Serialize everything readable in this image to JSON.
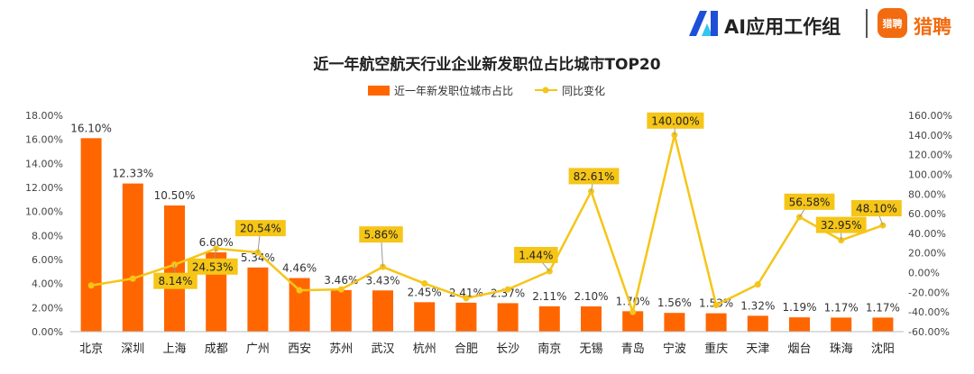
{
  "brand": {
    "ai_text": "AI应用工作组",
    "lp_icon_text": "猎聘",
    "lp_text": "猎聘",
    "accent": "#f26b10",
    "ai_logo_colors": [
      "#1e4fd8",
      "#33c6f0"
    ]
  },
  "chart_data": {
    "type": "bar",
    "title": "近一年航空航天行业企业新发职位占比城市TOP20",
    "categories": [
      "北京",
      "深圳",
      "上海",
      "成都",
      "广州",
      "西安",
      "苏州",
      "武汉",
      "杭州",
      "合肥",
      "长沙",
      "南京",
      "无锡",
      "青岛",
      "宁波",
      "重庆",
      "天津",
      "烟台",
      "珠海",
      "沈阳"
    ],
    "series": [
      {
        "name": "近一年新发职位城市占比",
        "kind": "bar",
        "axis": "left",
        "color": "#ff6600",
        "values": [
          16.1,
          12.33,
          10.5,
          6.6,
          5.34,
          4.46,
          3.46,
          3.43,
          2.45,
          2.41,
          2.37,
          2.11,
          2.1,
          1.7,
          1.56,
          1.53,
          1.32,
          1.19,
          1.17,
          1.17
        ],
        "labels": [
          "16.10%",
          "12.33%",
          "10.50%",
          "6.60%",
          "5.34%",
          "4.46%",
          "3.46%",
          "3.43%",
          "2.45%",
          "2.41%",
          "2.37%",
          "2.11%",
          "2.10%",
          "1.70%",
          "1.56%",
          "1.53%",
          "1.32%",
          "1.19%",
          "1.17%",
          "1.17%"
        ]
      },
      {
        "name": "同比变化",
        "kind": "line",
        "axis": "right",
        "color": "#f5c518",
        "values": [
          -13,
          -6,
          8.14,
          24.53,
          20.54,
          -18,
          -17,
          5.86,
          -11,
          -26,
          -17,
          1.44,
          82.61,
          -40,
          140.0,
          -33,
          -12,
          56.58,
          32.95,
          48.1
        ],
        "callouts": [
          {
            "index": 2,
            "text": "8.14%"
          },
          {
            "index": 3,
            "text": "24.53%"
          },
          {
            "index": 4,
            "text": "20.54%"
          },
          {
            "index": 7,
            "text": "5.86%"
          },
          {
            "index": 11,
            "text": "1.44%"
          },
          {
            "index": 12,
            "text": "82.61%"
          },
          {
            "index": 14,
            "text": "140.00%"
          },
          {
            "index": 17,
            "text": "56.58%"
          },
          {
            "index": 18,
            "text": "32.95%"
          },
          {
            "index": 19,
            "text": "48.10%"
          }
        ]
      }
    ],
    "y_left": {
      "min": 0,
      "max": 18,
      "step": 2,
      "ticks": [
        "0.00%",
        "2.00%",
        "4.00%",
        "6.00%",
        "8.00%",
        "10.00%",
        "12.00%",
        "14.00%",
        "16.00%",
        "18.00%"
      ]
    },
    "y_right": {
      "min": -60,
      "max": 160,
      "step": 20,
      "ticks": [
        "-60.00%",
        "-40.00%",
        "-20.00%",
        "0.00%",
        "20.00%",
        "40.00%",
        "60.00%",
        "80.00%",
        "100.00%",
        "120.00%",
        "140.00%",
        "160.00%"
      ]
    },
    "legend_position": "top-center",
    "grid": false
  }
}
